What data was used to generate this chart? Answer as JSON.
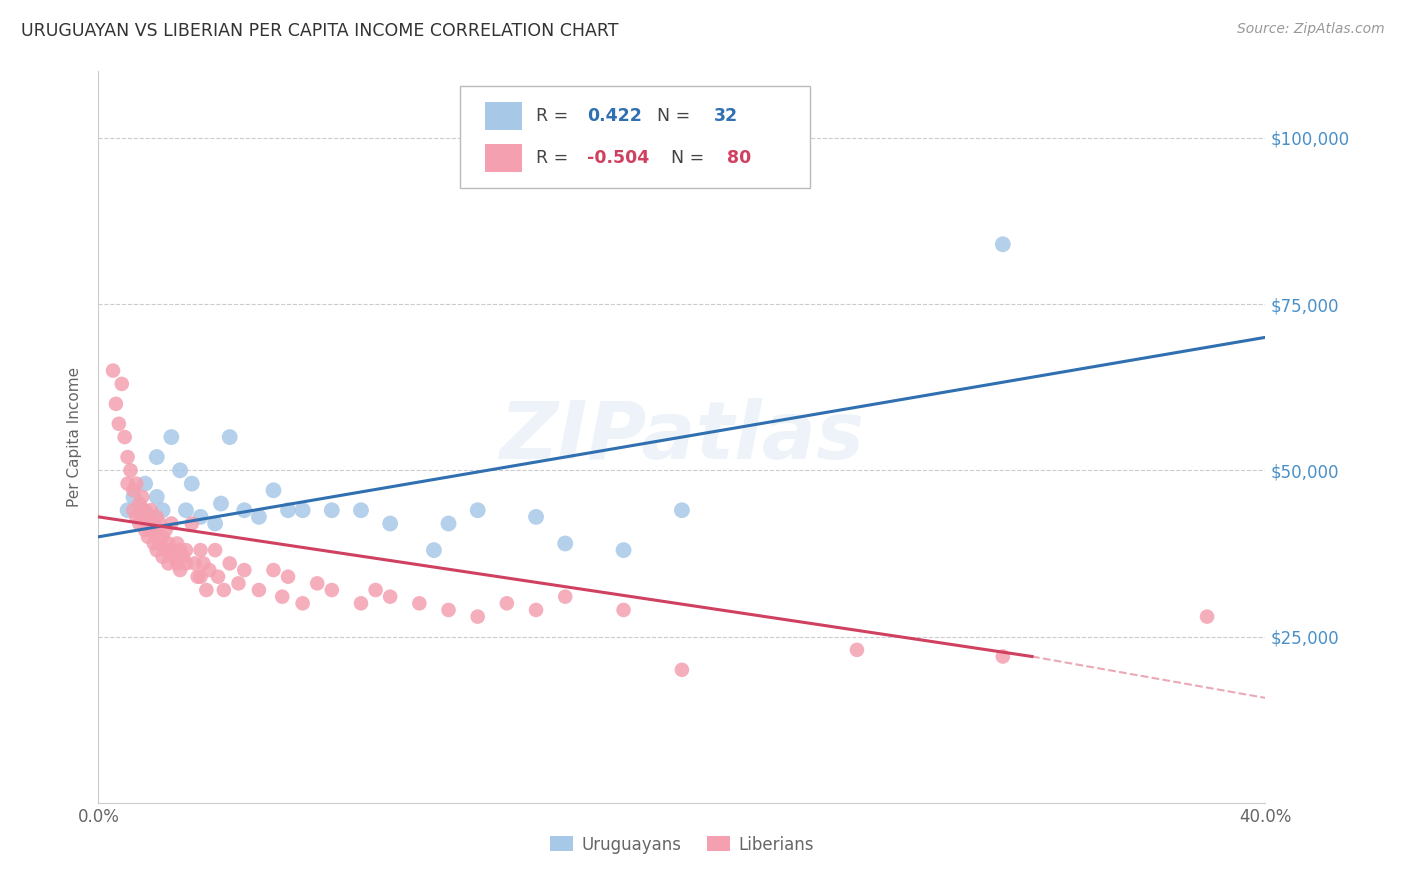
{
  "title": "URUGUAYAN VS LIBERIAN PER CAPITA INCOME CORRELATION CHART",
  "source": "Source: ZipAtlas.com",
  "ylabel": "Per Capita Income",
  "xlim": [
    0.0,
    0.4
  ],
  "ylim": [
    0,
    110000
  ],
  "yticks": [
    0,
    25000,
    50000,
    75000,
    100000
  ],
  "ytick_labels": [
    "",
    "$25,000",
    "$50,000",
    "$75,000",
    "$100,000"
  ],
  "xticks": [
    0.0,
    0.05,
    0.1,
    0.15,
    0.2,
    0.25,
    0.3,
    0.35,
    0.4
  ],
  "blue_color": "#a8c8e8",
  "pink_color": "#f4a0b0",
  "blue_line_color": "#3070b0",
  "pink_line_color": "#d04060",
  "axis_tick_color": "#4a90c8",
  "R_blue": 0.422,
  "N_blue": 32,
  "R_pink": -0.504,
  "N_pink": 80,
  "legend_label_blue": "Uruguayans",
  "legend_label_pink": "Liberians",
  "watermark": "ZIPatlas",
  "watermark_color": "#5090c0",
  "blue_scatter": [
    [
      0.01,
      44000
    ],
    [
      0.012,
      46000
    ],
    [
      0.015,
      44000
    ],
    [
      0.016,
      48000
    ],
    [
      0.018,
      43000
    ],
    [
      0.02,
      52000
    ],
    [
      0.02,
      46000
    ],
    [
      0.022,
      44000
    ],
    [
      0.025,
      55000
    ],
    [
      0.028,
      50000
    ],
    [
      0.03,
      44000
    ],
    [
      0.032,
      48000
    ],
    [
      0.035,
      43000
    ],
    [
      0.04,
      42000
    ],
    [
      0.042,
      45000
    ],
    [
      0.045,
      55000
    ],
    [
      0.05,
      44000
    ],
    [
      0.055,
      43000
    ],
    [
      0.06,
      47000
    ],
    [
      0.065,
      44000
    ],
    [
      0.07,
      44000
    ],
    [
      0.08,
      44000
    ],
    [
      0.09,
      44000
    ],
    [
      0.1,
      42000
    ],
    [
      0.115,
      38000
    ],
    [
      0.12,
      42000
    ],
    [
      0.13,
      44000
    ],
    [
      0.15,
      43000
    ],
    [
      0.16,
      39000
    ],
    [
      0.18,
      38000
    ],
    [
      0.2,
      44000
    ],
    [
      0.31,
      84000
    ]
  ],
  "pink_scatter": [
    [
      0.005,
      65000
    ],
    [
      0.006,
      60000
    ],
    [
      0.007,
      57000
    ],
    [
      0.008,
      63000
    ],
    [
      0.009,
      55000
    ],
    [
      0.01,
      52000
    ],
    [
      0.01,
      48000
    ],
    [
      0.011,
      50000
    ],
    [
      0.012,
      47000
    ],
    [
      0.012,
      44000
    ],
    [
      0.013,
      48000
    ],
    [
      0.013,
      43000
    ],
    [
      0.014,
      45000
    ],
    [
      0.014,
      42000
    ],
    [
      0.015,
      46000
    ],
    [
      0.015,
      43000
    ],
    [
      0.016,
      44000
    ],
    [
      0.016,
      41000
    ],
    [
      0.017,
      43000
    ],
    [
      0.017,
      40000
    ],
    [
      0.018,
      44000
    ],
    [
      0.018,
      41000
    ],
    [
      0.019,
      42000
    ],
    [
      0.019,
      39000
    ],
    [
      0.02,
      43000
    ],
    [
      0.02,
      41000
    ],
    [
      0.02,
      38000
    ],
    [
      0.021,
      42000
    ],
    [
      0.021,
      39000
    ],
    [
      0.022,
      40000
    ],
    [
      0.022,
      37000
    ],
    [
      0.023,
      41000
    ],
    [
      0.023,
      38000
    ],
    [
      0.024,
      39000
    ],
    [
      0.024,
      36000
    ],
    [
      0.025,
      42000
    ],
    [
      0.025,
      38000
    ],
    [
      0.026,
      37000
    ],
    [
      0.027,
      39000
    ],
    [
      0.027,
      36000
    ],
    [
      0.028,
      38000
    ],
    [
      0.028,
      35000
    ],
    [
      0.029,
      37000
    ],
    [
      0.03,
      36000
    ],
    [
      0.03,
      38000
    ],
    [
      0.032,
      42000
    ],
    [
      0.033,
      36000
    ],
    [
      0.034,
      34000
    ],
    [
      0.035,
      38000
    ],
    [
      0.035,
      34000
    ],
    [
      0.036,
      36000
    ],
    [
      0.037,
      32000
    ],
    [
      0.038,
      35000
    ],
    [
      0.04,
      38000
    ],
    [
      0.041,
      34000
    ],
    [
      0.043,
      32000
    ],
    [
      0.045,
      36000
    ],
    [
      0.048,
      33000
    ],
    [
      0.05,
      35000
    ],
    [
      0.055,
      32000
    ],
    [
      0.06,
      35000
    ],
    [
      0.063,
      31000
    ],
    [
      0.065,
      34000
    ],
    [
      0.07,
      30000
    ],
    [
      0.075,
      33000
    ],
    [
      0.08,
      32000
    ],
    [
      0.09,
      30000
    ],
    [
      0.095,
      32000
    ],
    [
      0.1,
      31000
    ],
    [
      0.11,
      30000
    ],
    [
      0.12,
      29000
    ],
    [
      0.13,
      28000
    ],
    [
      0.14,
      30000
    ],
    [
      0.15,
      29000
    ],
    [
      0.16,
      31000
    ],
    [
      0.18,
      29000
    ],
    [
      0.2,
      20000
    ],
    [
      0.26,
      23000
    ],
    [
      0.31,
      22000
    ],
    [
      0.38,
      28000
    ]
  ],
  "blue_line": [
    [
      0.0,
      40000
    ],
    [
      0.4,
      70000
    ]
  ],
  "pink_line_solid": [
    [
      0.0,
      43000
    ],
    [
      0.32,
      22000
    ]
  ],
  "pink_line_dash": [
    [
      0.32,
      22000
    ],
    [
      0.5,
      8000
    ]
  ]
}
